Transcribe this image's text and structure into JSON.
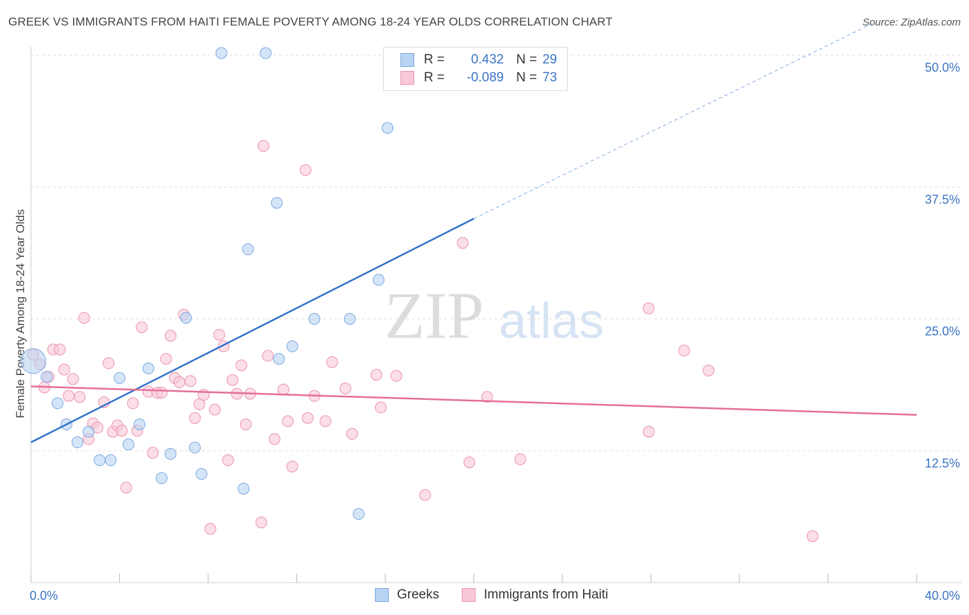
{
  "header": {
    "title": "GREEK VS IMMIGRANTS FROM HAITI FEMALE POVERTY AMONG 18-24 YEAR OLDS CORRELATION CHART",
    "source": "Source: ZipAtlas.com"
  },
  "watermark": {
    "zip": "ZIP",
    "atlas": "atlas"
  },
  "legend": {
    "rows": [
      {
        "r_label": "R =",
        "r_value": "0.432",
        "n_label": "N =",
        "n_value": "29"
      },
      {
        "r_label": "R =",
        "r_value": "-0.089",
        "n_label": "N =",
        "n_value": "73"
      }
    ]
  },
  "bottom_legend": {
    "greeks": "Greeks",
    "haiti": "Immigrants from Haiti"
  },
  "colors": {
    "greek_fill": "#b9d3f3",
    "greek_stroke": "#7aa8e0",
    "greek_line": "#2f73c9",
    "haiti_fill": "#f8c8d6",
    "haiti_stroke": "#eb93ae",
    "haiti_line": "#e56e97",
    "tick_label": "#3a74c4",
    "grid": "#dddddd"
  },
  "chart_data": {
    "type": "scatter",
    "title": "GREEK VS IMMIGRANTS FROM HAITI FEMALE POVERTY AMONG 18-24 YEAR OLDS CORRELATION CHART",
    "xlabel": "",
    "ylabel": "Female Poverty Among 18-24 Year Olds",
    "xlim": [
      0,
      40
    ],
    "ylim": [
      0,
      50
    ],
    "x_tick_labels": [
      "0.0%",
      "40.0%"
    ],
    "y_ticks": [
      {
        "value": 12.5,
        "label": "12.5%"
      },
      {
        "value": 25.0,
        "label": "25.0%"
      },
      {
        "value": 37.5,
        "label": "37.5%"
      },
      {
        "value": 50.0,
        "label": "50.0%"
      }
    ],
    "grid": true,
    "legend_position": "top-center",
    "series": [
      {
        "name": "Greeks",
        "r": 0.432,
        "n": 29,
        "trend": {
          "x0": 0,
          "y0": 13.3,
          "x1": 20,
          "y1": 34.5,
          "dashed_to_x": 38,
          "dashed_y": 53.0
        },
        "points": [
          [
            0.1,
            21.0
          ],
          [
            0.7,
            19.5
          ],
          [
            1.2,
            17.0
          ],
          [
            1.6,
            15.0
          ],
          [
            2.1,
            13.3
          ],
          [
            2.6,
            14.3
          ],
          [
            3.1,
            11.6
          ],
          [
            3.6,
            11.6
          ],
          [
            4.0,
            19.4
          ],
          [
            4.4,
            13.1
          ],
          [
            4.9,
            15.0
          ],
          [
            5.3,
            20.3
          ],
          [
            5.9,
            9.9
          ],
          [
            6.3,
            12.2
          ],
          [
            7.0,
            25.1
          ],
          [
            7.4,
            12.8
          ],
          [
            7.7,
            10.3
          ],
          [
            8.6,
            50.2
          ],
          [
            9.8,
            31.6
          ],
          [
            9.6,
            8.9
          ],
          [
            10.6,
            50.2
          ],
          [
            11.1,
            36.0
          ],
          [
            11.2,
            21.2
          ],
          [
            11.8,
            22.4
          ],
          [
            12.8,
            25.0
          ],
          [
            14.4,
            25.0
          ],
          [
            14.8,
            6.5
          ],
          [
            15.7,
            28.7
          ],
          [
            16.1,
            43.1
          ]
        ]
      },
      {
        "name": "Immigrants from Haiti",
        "r": -0.089,
        "n": 73,
        "trend": {
          "x0": 0,
          "y0": 18.6,
          "x1": 40,
          "y1": 15.9
        },
        "points": [
          [
            0.1,
            21.6
          ],
          [
            0.4,
            20.7
          ],
          [
            0.6,
            18.5
          ],
          [
            0.8,
            19.5
          ],
          [
            1.0,
            22.1
          ],
          [
            1.3,
            22.1
          ],
          [
            1.5,
            20.2
          ],
          [
            1.7,
            17.7
          ],
          [
            1.9,
            19.3
          ],
          [
            2.2,
            17.6
          ],
          [
            2.4,
            25.1
          ],
          [
            2.6,
            13.6
          ],
          [
            2.8,
            15.1
          ],
          [
            3.0,
            14.7
          ],
          [
            3.3,
            17.1
          ],
          [
            3.5,
            20.8
          ],
          [
            3.7,
            14.3
          ],
          [
            3.9,
            14.9
          ],
          [
            4.1,
            14.4
          ],
          [
            4.3,
            9.0
          ],
          [
            4.6,
            17.0
          ],
          [
            4.8,
            14.4
          ],
          [
            5.0,
            24.2
          ],
          [
            5.3,
            18.1
          ],
          [
            5.5,
            12.3
          ],
          [
            5.7,
            18.0
          ],
          [
            5.9,
            18.0
          ],
          [
            6.1,
            21.2
          ],
          [
            6.3,
            23.4
          ],
          [
            6.5,
            19.4
          ],
          [
            6.7,
            19.0
          ],
          [
            6.9,
            25.4
          ],
          [
            7.2,
            19.1
          ],
          [
            7.4,
            15.6
          ],
          [
            7.6,
            16.9
          ],
          [
            7.8,
            17.8
          ],
          [
            8.1,
            5.1
          ],
          [
            8.3,
            16.4
          ],
          [
            8.5,
            23.5
          ],
          [
            8.7,
            22.4
          ],
          [
            8.9,
            11.6
          ],
          [
            9.1,
            19.2
          ],
          [
            9.3,
            17.9
          ],
          [
            9.5,
            20.6
          ],
          [
            9.7,
            15.0
          ],
          [
            9.9,
            17.9
          ],
          [
            10.4,
            5.7
          ],
          [
            10.5,
            41.4
          ],
          [
            10.7,
            21.5
          ],
          [
            11.0,
            13.6
          ],
          [
            11.4,
            18.3
          ],
          [
            11.6,
            15.3
          ],
          [
            11.8,
            11.0
          ],
          [
            12.4,
            39.1
          ],
          [
            12.5,
            15.6
          ],
          [
            12.8,
            17.7
          ],
          [
            13.3,
            15.3
          ],
          [
            13.6,
            20.9
          ],
          [
            14.2,
            18.4
          ],
          [
            14.5,
            14.1
          ],
          [
            15.6,
            19.7
          ],
          [
            15.8,
            16.6
          ],
          [
            16.5,
            19.6
          ],
          [
            17.8,
            8.3
          ],
          [
            19.5,
            32.2
          ],
          [
            19.8,
            11.4
          ],
          [
            20.6,
            17.6
          ],
          [
            22.1,
            11.7
          ],
          [
            27.9,
            26.0
          ],
          [
            27.9,
            14.3
          ],
          [
            29.5,
            22.0
          ],
          [
            30.6,
            20.1
          ],
          [
            35.3,
            4.4
          ]
        ]
      }
    ]
  }
}
